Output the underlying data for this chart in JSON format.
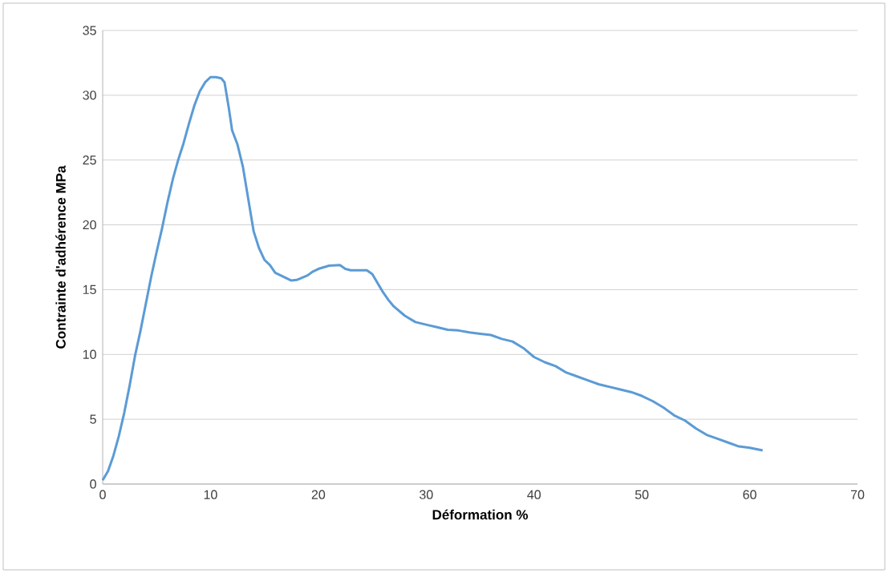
{
  "chart_data": {
    "type": "line",
    "xlabel": "Déformation %",
    "ylabel": "Contrainte d'adhérence MPa",
    "xlim": [
      0,
      70
    ],
    "xticks": [
      0,
      10,
      20,
      30,
      40,
      50,
      60,
      70
    ],
    "ylim": [
      0,
      35
    ],
    "yticks": [
      0,
      5,
      10,
      15,
      20,
      25,
      30,
      35
    ],
    "grid": "y",
    "marker": "none",
    "line_style": "solid",
    "series": [
      {
        "color": "#5b9bd5",
        "x": [
          0,
          0.5,
          1,
          1.5,
          2,
          2.5,
          3,
          3.5,
          4,
          4.5,
          5,
          5.5,
          6,
          6.5,
          7,
          7.5,
          8,
          8.5,
          9,
          9.5,
          10,
          10.5,
          11,
          11.3,
          11.7,
          12,
          12.5,
          13,
          13.5,
          14,
          14.5,
          15,
          15.5,
          16,
          17,
          17.5,
          18,
          19,
          19.5,
          20,
          21,
          22,
          22.5,
          23,
          24,
          24.5,
          25,
          25.5,
          26,
          26.5,
          27,
          28,
          29,
          30,
          31,
          32,
          33,
          34,
          35,
          36,
          37,
          38,
          39,
          40,
          41,
          42,
          43,
          44,
          45,
          46,
          47,
          48,
          49,
          50,
          51,
          52,
          53,
          54,
          55,
          56,
          57,
          58,
          59,
          60,
          61.2
        ],
        "values": [
          0.3,
          1,
          2.2,
          3.7,
          5.5,
          7.6,
          9.9,
          11.8,
          13.9,
          16,
          17.9,
          19.7,
          21.7,
          23.5,
          25,
          26.3,
          27.8,
          29.2,
          30.3,
          31,
          31.4,
          31.4,
          31.3,
          31,
          29,
          27.3,
          26.2,
          24.5,
          22,
          19.5,
          18.2,
          17.3,
          16.9,
          16.3,
          15.9,
          15.7,
          15.75,
          16.1,
          16.4,
          16.6,
          16.85,
          16.9,
          16.6,
          16.5,
          16.5,
          16.5,
          16.2,
          15.5,
          14.8,
          14.2,
          13.7,
          13,
          12.5,
          12.3,
          12.1,
          11.9,
          11.85,
          11.7,
          11.6,
          11.5,
          11.2,
          11,
          10.5,
          9.8,
          9.4,
          9.1,
          8.6,
          8.3,
          8,
          7.7,
          7.5,
          7.3,
          7.1,
          6.8,
          6.4,
          5.9,
          5.3,
          4.9,
          4.3,
          3.8,
          3.5,
          3.2,
          2.9,
          2.8,
          2.6
        ]
      }
    ]
  }
}
